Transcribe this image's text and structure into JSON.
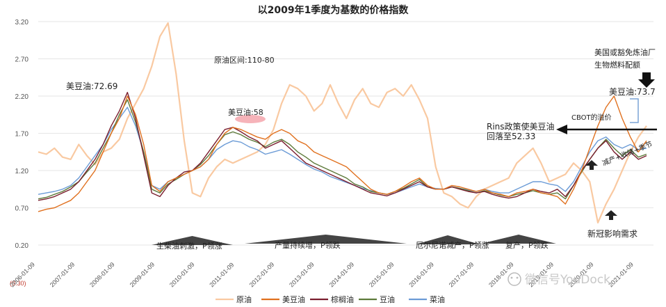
{
  "chart_data": {
    "type": "line",
    "title": "以2009年1季度为基数的价格指数",
    "ylim": [
      0.2,
      3.2
    ],
    "yticks": [
      "3.20",
      "2.70",
      "2.20",
      "1.70",
      "1.20",
      "0.70",
      "0.20"
    ],
    "xticks": [
      "2006-01-09",
      "2007-01-09",
      "2008-01-09",
      "2009-01-09",
      "2010-01-09",
      "2011-01-09",
      "2012-01-09",
      "2013-01-09",
      "2014-01-09",
      "2015-01-09",
      "2016-01-09",
      "2017-01-09",
      "2018-01-09",
      "2019-01-09",
      "2020-01-09",
      "2021-01-09"
    ],
    "x_start_label": "(0.30)",
    "series": [
      {
        "name": "原油",
        "color": "#f9c9a1",
        "values": [
          1.45,
          1.42,
          1.5,
          1.38,
          1.35,
          1.55,
          1.4,
          1.28,
          1.45,
          1.5,
          1.62,
          1.9,
          2.1,
          2.3,
          2.6,
          3.0,
          3.18,
          2.5,
          1.6,
          0.9,
          0.85,
          1.1,
          1.25,
          1.35,
          1.3,
          1.35,
          1.4,
          1.45,
          1.55,
          1.75,
          2.1,
          2.35,
          2.3,
          2.2,
          2.0,
          2.1,
          2.35,
          2.1,
          1.9,
          2.15,
          2.3,
          2.1,
          2.05,
          2.25,
          2.3,
          2.2,
          2.35,
          2.15,
          1.9,
          1.25,
          0.9,
          0.85,
          0.75,
          0.7,
          0.85,
          0.95,
          1.0,
          1.05,
          1.1,
          1.3,
          1.4,
          1.5,
          1.3,
          1.05,
          1.1,
          1.15,
          1.3,
          1.2,
          1.05,
          0.5,
          0.75,
          0.95,
          1.2,
          1.45,
          1.65,
          1.8
        ]
      },
      {
        "name": "美豆油",
        "color": "#e0701e",
        "values": [
          0.65,
          0.68,
          0.7,
          0.75,
          0.8,
          0.9,
          1.05,
          1.2,
          1.45,
          1.7,
          1.9,
          2.2,
          1.95,
          1.55,
          1.0,
          0.92,
          1.05,
          1.1,
          1.15,
          1.2,
          1.25,
          1.35,
          1.55,
          1.7,
          1.78,
          1.75,
          1.7,
          1.65,
          1.62,
          1.7,
          1.75,
          1.7,
          1.6,
          1.55,
          1.45,
          1.4,
          1.35,
          1.3,
          1.25,
          1.15,
          1.05,
          0.95,
          0.9,
          0.88,
          0.92,
          0.98,
          1.05,
          1.1,
          1.0,
          0.95,
          0.95,
          1.0,
          0.98,
          0.95,
          0.92,
          0.95,
          0.9,
          0.88,
          0.85,
          0.9,
          0.92,
          0.95,
          0.9,
          0.88,
          0.85,
          0.75,
          0.95,
          1.2,
          1.5,
          1.8,
          2.05,
          2.2,
          1.9,
          1.65,
          1.45,
          1.6
        ]
      },
      {
        "name": "棕榈油",
        "color": "#7a1e2e",
        "values": [
          0.8,
          0.82,
          0.85,
          0.9,
          0.95,
          1.05,
          1.2,
          1.35,
          1.55,
          1.8,
          2.0,
          2.25,
          1.9,
          1.4,
          0.9,
          0.85,
          1.0,
          1.1,
          1.18,
          1.2,
          1.3,
          1.45,
          1.6,
          1.75,
          1.78,
          1.72,
          1.65,
          1.6,
          1.5,
          1.55,
          1.6,
          1.5,
          1.4,
          1.3,
          1.25,
          1.2,
          1.15,
          1.1,
          1.05,
          1.0,
          0.95,
          0.9,
          0.88,
          0.86,
          0.9,
          0.95,
          1.0,
          1.05,
          0.98,
          0.95,
          0.95,
          0.98,
          0.95,
          0.92,
          0.9,
          0.92,
          0.88,
          0.85,
          0.83,
          0.85,
          0.9,
          0.95,
          0.92,
          0.9,
          0.95,
          0.85,
          1.0,
          1.2,
          1.35,
          1.5,
          1.6,
          1.45,
          1.35,
          1.45,
          1.35,
          1.4
        ]
      },
      {
        "name": "豆油",
        "color": "#5d7a3a",
        "values": [
          0.82,
          0.84,
          0.88,
          0.92,
          0.98,
          1.05,
          1.18,
          1.3,
          1.5,
          1.7,
          1.95,
          2.15,
          1.85,
          1.45,
          0.95,
          0.9,
          1.02,
          1.08,
          1.15,
          1.2,
          1.28,
          1.4,
          1.55,
          1.68,
          1.72,
          1.68,
          1.62,
          1.58,
          1.52,
          1.58,
          1.62,
          1.55,
          1.45,
          1.38,
          1.3,
          1.25,
          1.2,
          1.15,
          1.1,
          1.02,
          0.98,
          0.92,
          0.9,
          0.88,
          0.92,
          0.96,
          1.02,
          1.08,
          0.98,
          0.95,
          0.95,
          0.98,
          0.96,
          0.93,
          0.9,
          0.93,
          0.9,
          0.87,
          0.85,
          0.88,
          0.9,
          0.93,
          0.9,
          0.88,
          0.9,
          0.82,
          1.0,
          1.18,
          1.35,
          1.5,
          1.62,
          1.5,
          1.4,
          1.48,
          1.38,
          1.42
        ]
      },
      {
        "name": "菜油",
        "color": "#6b9bd6",
        "values": [
          0.88,
          0.9,
          0.92,
          0.95,
          1.0,
          1.1,
          1.25,
          1.4,
          1.55,
          1.75,
          1.9,
          2.05,
          1.8,
          1.45,
          1.0,
          0.95,
          1.05,
          1.1,
          1.15,
          1.2,
          1.25,
          1.35,
          1.48,
          1.55,
          1.6,
          1.58,
          1.52,
          1.48,
          1.42,
          1.45,
          1.48,
          1.42,
          1.35,
          1.28,
          1.22,
          1.18,
          1.12,
          1.08,
          1.04,
          1.0,
          0.96,
          0.93,
          0.9,
          0.88,
          0.9,
          0.94,
          0.98,
          1.02,
          0.98,
          0.96,
          0.95,
          0.98,
          0.96,
          0.94,
          0.92,
          0.95,
          0.92,
          0.9,
          0.9,
          0.95,
          1.0,
          1.05,
          1.05,
          1.02,
          1.0,
          0.92,
          1.05,
          1.25,
          1.45,
          1.6,
          1.65,
          1.55,
          1.5,
          1.55,
          1.48,
          1.5
        ]
      }
    ],
    "annotations": [
      {
        "text": "美豆油:72.69"
      },
      {
        "text": "原油区间:110-80"
      },
      {
        "text": "美豆油:58"
      },
      {
        "text": "美国或豁免炼油厂"
      },
      {
        "text": "生物燃料配额"
      },
      {
        "text": "美豆油:73.7"
      },
      {
        "text": "CBOT的溢价"
      },
      {
        "text": "Rins政策使美豆油"
      },
      {
        "text": "回落至52.33"
      },
      {
        "text": "减产+收储+季节"
      },
      {
        "text": "新冠影响需求"
      },
      {
        "text": "生柴油刺激，P领涨"
      },
      {
        "text": "产量持续增，P领跌"
      },
      {
        "text": "厄尔尼诺减产，P领涨"
      },
      {
        "text": "复产，P领跌"
      }
    ]
  },
  "watermark": "微信号YouDock"
}
